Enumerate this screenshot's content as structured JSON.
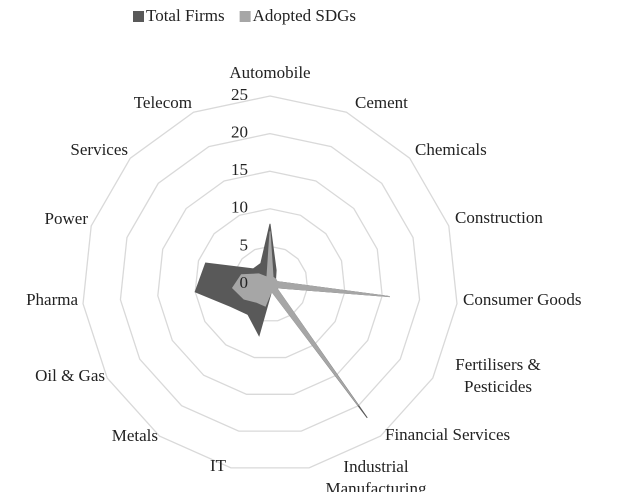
{
  "chart_data": {
    "type": "radar",
    "categories": [
      "Automobile",
      "Cement",
      "Chemicals",
      "Construction",
      "Consumer Goods",
      "Fertilisers & Pesticides",
      "Financial Services",
      "Industrial Manufacturing",
      "IT",
      "Metals",
      "Oil & Gas",
      "Pharma",
      "Power",
      "Services",
      "Telecom"
    ],
    "series": [
      {
        "name": "Total Firms",
        "color": "#595959",
        "values": [
          8,
          2,
          1,
          1,
          16,
          1,
          22,
          1,
          7,
          5,
          6,
          10,
          9,
          3,
          3
        ]
      },
      {
        "name": "Adopted SDGs",
        "color": "#a6a6a6",
        "values": [
          7,
          1,
          1,
          1,
          16,
          1,
          20,
          1,
          3,
          3,
          4,
          5,
          4,
          2,
          1
        ]
      }
    ],
    "ylim": [
      0,
      25
    ],
    "yticks": [
      0,
      5,
      10,
      15,
      20,
      25
    ],
    "grid": true,
    "legend": "top"
  }
}
